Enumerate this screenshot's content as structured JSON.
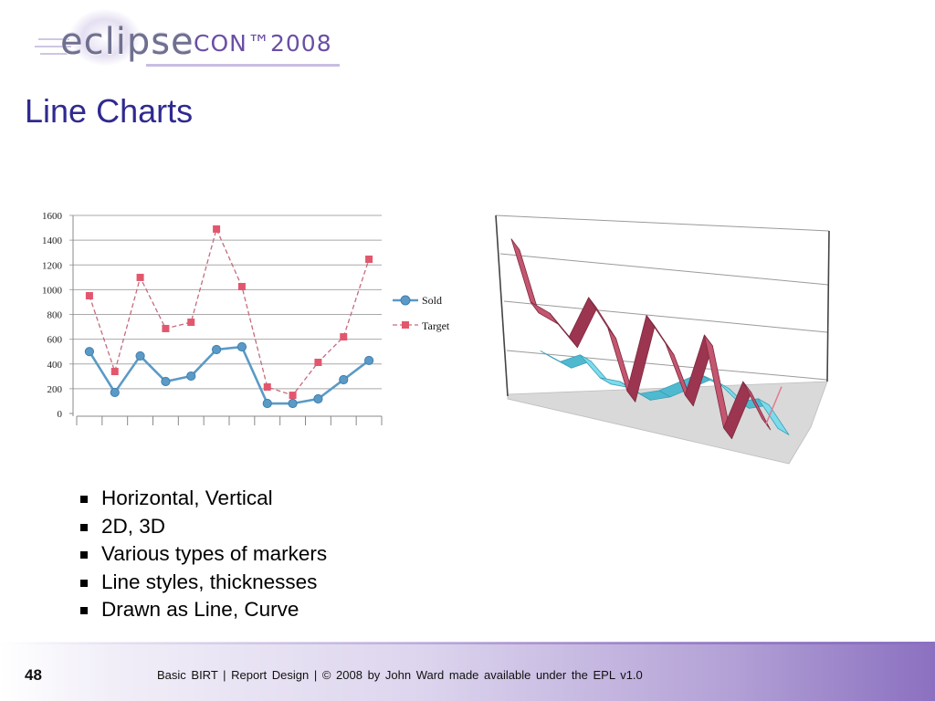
{
  "logo": {
    "word": "eclipse",
    "con": "CON™",
    "year": "2008"
  },
  "title": "Line Charts",
  "bullets": [
    "Horizontal, Vertical",
    "2D, 3D",
    "Various types of markers",
    "Line styles, thicknesses",
    "Drawn as Line, Curve"
  ],
  "footer": {
    "page_number": "48",
    "text": "Basic BIRT | Report Design | © 2008 by John Ward made available under the EPL v1.0"
  },
  "colors": {
    "title": "#2f2a8f",
    "logo_con": "#6a4fa4",
    "sold": "#5b9ac6",
    "target": "#e2576d",
    "ribbon_red": "#b84d66",
    "ribbon_cyan": "#5cc9de",
    "footer_band": "#8b70c0"
  },
  "chart_data": [
    {
      "type": "line",
      "ylim": [
        0,
        1600
      ],
      "yticks": [
        0,
        200,
        400,
        600,
        800,
        1000,
        1200,
        1400,
        1600
      ],
      "grid": true,
      "legend": "right",
      "series": [
        {
          "name": "Sold",
          "marker": "circle",
          "line": "solid",
          "values": [
            500,
            170,
            465,
            258,
            302,
            516,
            538,
            81,
            81,
            118,
            273,
            428
          ]
        },
        {
          "name": "Target",
          "marker": "square",
          "line": "dashed",
          "values": [
            951,
            339,
            1099,
            686,
            737,
            1490,
            1025,
            214,
            147,
            413,
            619,
            1246
          ]
        }
      ]
    },
    {
      "type": "line",
      "three_d": true,
      "series": [
        {
          "values": [
            0.94,
            0.59,
            0.54,
            0.42,
            0.66,
            0.5,
            0.15,
            0.6,
            0.45,
            0.17,
            0.53,
            0.01,
            0.29,
            0.09,
            0.29
          ]
        },
        {
          "values": [
            0.31,
            0.26,
            0.31,
            0.19,
            0.18,
            0.12,
            0.15,
            0.21,
            0.27,
            0.23,
            0.13,
            0.16,
            0.0
          ]
        }
      ]
    }
  ]
}
